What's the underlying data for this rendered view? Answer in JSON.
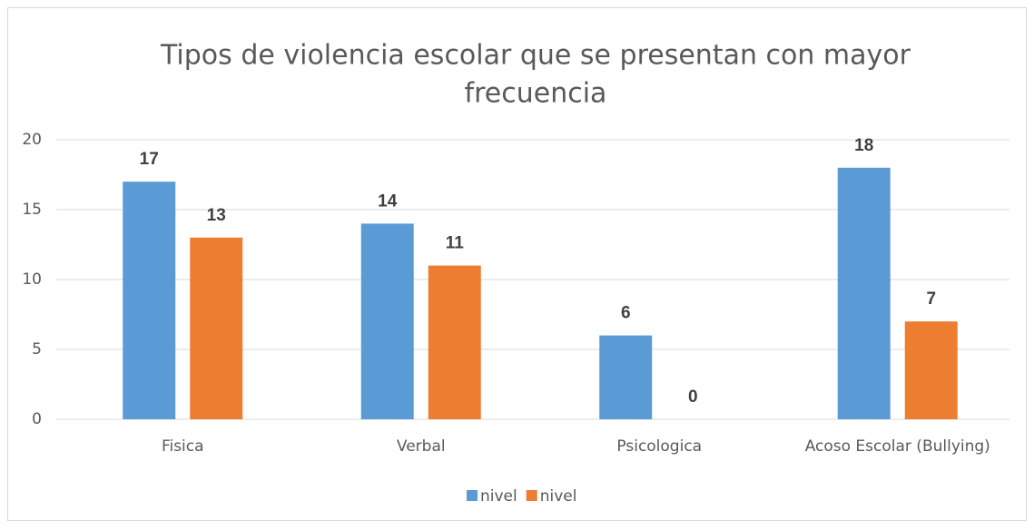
{
  "chart_data": {
    "type": "bar",
    "title": [
      "Tipos de violencia escolar que se presentan con mayor",
      "frecuencia"
    ],
    "categories": [
      "Fisica",
      "Verbal",
      "Psicologica",
      "Acoso Escolar (Bullying)"
    ],
    "series": [
      {
        "name": "nivel",
        "color": "#5b9bd5",
        "values": [
          17,
          14,
          6,
          18
        ]
      },
      {
        "name": "nivel",
        "color": "#ed7d31",
        "values": [
          13,
          11,
          0,
          7
        ]
      }
    ],
    "ylim": [
      0,
      20
    ],
    "yticks": [
      0,
      5,
      10,
      15,
      20
    ],
    "grid": true,
    "legend": "bottom"
  }
}
